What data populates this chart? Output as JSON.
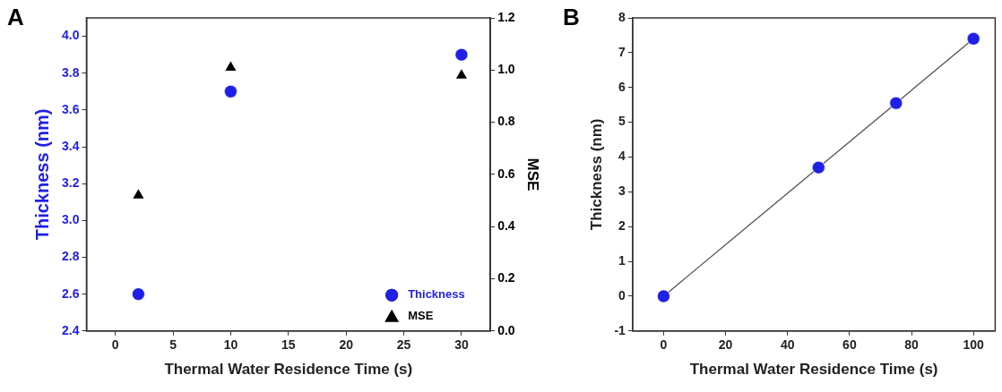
{
  "chart_data": [
    {
      "type": "scatter",
      "title": "A",
      "xlabel": "Thermal Water Residence Time (s)",
      "ylabel": "Thickness (nm)",
      "y2label": "MSE",
      "x": [
        2,
        10,
        30
      ],
      "series": [
        {
          "name": "Thickness",
          "color": "#1f1fe6",
          "marker": "circle",
          "values": [
            2.6,
            3.7,
            3.9
          ]
        },
        {
          "name": "MSE",
          "color": "#000000",
          "marker": "triangle",
          "axis": "y2",
          "values": [
            0.52,
            1.01,
            0.98
          ]
        }
      ],
      "xlim": [
        -2.5,
        32.5
      ],
      "xticks": [
        0,
        5,
        10,
        15,
        20,
        25,
        30
      ],
      "ylim": [
        2.4,
        4.1
      ],
      "yticks": [
        2.4,
        2.6,
        2.8,
        {
          "value": 3,
          "label": "3.0"
        },
        3.2,
        3.4,
        3.6,
        3.8,
        {
          "value": 4,
          "label": "4.0"
        }
      ],
      "y2lim": [
        0,
        1.2
      ],
      "y2ticks": [
        {
          "value": 0,
          "label": "0.0"
        },
        0.2,
        0.4,
        0.6,
        0.8,
        {
          "value": 1,
          "label": "1.0"
        },
        1.2
      ],
      "grid": false,
      "legend": "bottom right"
    },
    {
      "type": "scatter",
      "title": "B",
      "xlabel": "Thermal Water Residence Time (s)",
      "ylabel": "Thickness (nm)",
      "x": [
        0,
        50,
        75,
        100
      ],
      "series": [
        {
          "color": "#1f1fe6",
          "marker": "circle",
          "values": [
            0,
            3.7,
            5.55,
            7.4
          ]
        },
        {
          "type": "line",
          "color": "#555555",
          "marker": "none",
          "x": [
            0,
            100
          ],
          "values": [
            0,
            7.4
          ]
        }
      ],
      "xlim": [
        -10,
        107
      ],
      "xticks": [
        0,
        20,
        40,
        60,
        80,
        100
      ],
      "ylim": [
        -1,
        8
      ],
      "yticks": [
        -1,
        0,
        1,
        2,
        3,
        4,
        5,
        6,
        7,
        8
      ],
      "grid": false,
      "legend": false
    }
  ]
}
